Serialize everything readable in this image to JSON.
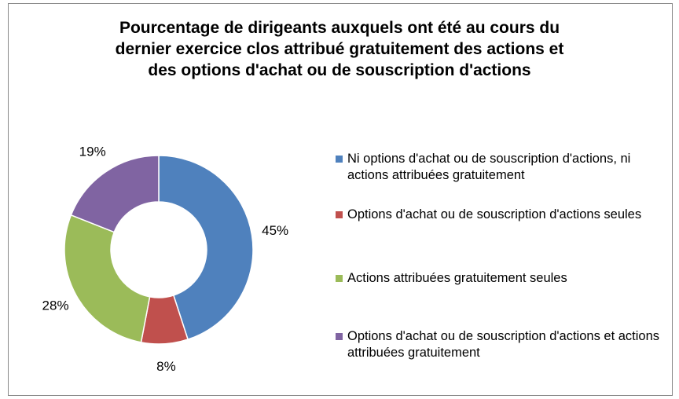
{
  "chart_data": {
    "type": "pie",
    "title": "Pourcentage de dirigeants auxquels ont été au cours du dernier exercice clos attribué gratuitement des actions et des options d'achat ou de souscription d'actions",
    "categories": [
      "Ni options d'achat ou de souscription d'actions, ni actions attribuées gratuitement",
      "Options d'achat ou de souscription d'actions seules",
      "Actions  attribuées gratuitement seules",
      "Options d'achat ou de souscription d'actions et actions attribuées gratuitement"
    ],
    "values": [
      45,
      8,
      28,
      19
    ],
    "value_labels": [
      "45%",
      "8%",
      "28%",
      "19%"
    ],
    "colors": [
      "#4f81bd",
      "#c0504d",
      "#9bbb59",
      "#8064a2"
    ],
    "donut": true,
    "legend": "right"
  }
}
